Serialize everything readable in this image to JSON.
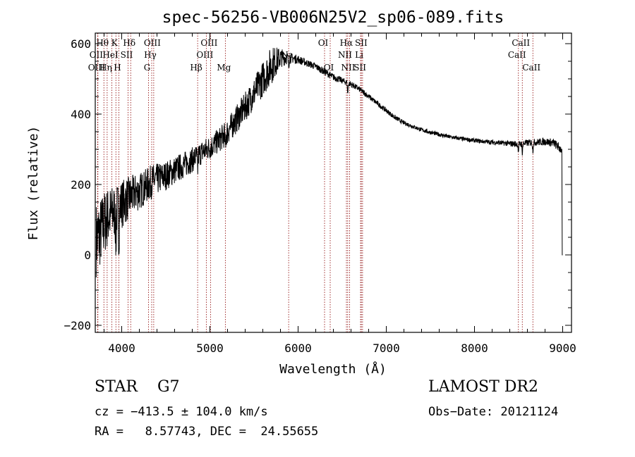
{
  "chart_data": {
    "type": "line",
    "title": "spec-56256-VB006N25V2_sp06-089.fits",
    "xlabel": "Wavelength (Å)",
    "ylabel": "Flux (relative)",
    "xlim": [
      3700,
      9100
    ],
    "ylim": [
      -220,
      630
    ],
    "xticks": [
      4000,
      5000,
      6000,
      7000,
      8000,
      9000
    ],
    "yticks": [
      -200,
      0,
      200,
      400,
      600
    ],
    "xtick_labels": [
      "4000",
      "5000",
      "6000",
      "7000",
      "8000",
      "9000"
    ],
    "ytick_labels": [
      "−200",
      "0",
      "200",
      "400",
      "600"
    ],
    "grid": false,
    "line_color": "#000000",
    "marker_color": "#8b0000",
    "series": [
      {
        "x": [
          3700,
          3750,
          3800,
          3850,
          3900,
          3950,
          4000,
          4050,
          4100,
          4150,
          4200,
          4250,
          4300,
          4350,
          4400,
          4450,
          4500,
          4600,
          4700,
          4800,
          4900,
          5000,
          5100,
          5200,
          5300,
          5400,
          5500,
          5600,
          5700,
          5800,
          5900,
          6000,
          6100,
          6200,
          6300,
          6400,
          6500,
          6600,
          6700,
          6800,
          6900,
          7000,
          7100,
          7200,
          7300,
          7400,
          7500,
          7600,
          7700,
          7800,
          7900,
          8000,
          8100,
          8200,
          8300,
          8400,
          8500,
          8600,
          8700,
          8800,
          8900,
          8980
        ],
        "y": [
          40,
          60,
          90,
          110,
          120,
          130,
          145,
          155,
          165,
          175,
          180,
          190,
          200,
          210,
          215,
          220,
          225,
          240,
          255,
          270,
          290,
          305,
          325,
          350,
          385,
          420,
          460,
          500,
          540,
          560,
          560,
          555,
          545,
          535,
          520,
          505,
          495,
          485,
          470,
          450,
          430,
          410,
          390,
          375,
          365,
          355,
          348,
          342,
          336,
          332,
          328,
          325,
          322,
          320,
          318,
          316,
          315,
          318,
          320,
          322,
          318,
          300
        ],
        "noise": [
          110,
          100,
          95,
          85,
          80,
          75,
          70,
          65,
          60,
          55,
          55,
          50,
          50,
          48,
          45,
          44,
          42,
          40,
          38,
          36,
          35,
          35,
          35,
          38,
          40,
          42,
          45,
          50,
          55,
          28,
          15,
          12,
          10,
          10,
          10,
          10,
          9,
          9,
          8,
          8,
          7,
          7,
          7,
          6,
          6,
          6,
          6,
          6,
          6,
          6,
          6,
          6,
          6,
          7,
          7,
          8,
          10,
          10,
          10,
          11,
          12,
          14
        ]
      }
    ],
    "line_markers": [
      {
        "label": "Hθ",
        "x": 3798,
        "row": 0
      },
      {
        "label": "OII",
        "x": 3727,
        "row": 1
      },
      {
        "label": "OIII",
        "x": 3730,
        "row": 2
      },
      {
        "label": "Hη",
        "x": 3835,
        "row": 2
      },
      {
        "label": "HeI",
        "x": 3889,
        "row": 1
      },
      {
        "label": "K",
        "x": 3934,
        "row": 0
      },
      {
        "label": "H",
        "x": 3968,
        "row": 2
      },
      {
        "label": "SII",
        "x": 4072,
        "row": 1
      },
      {
        "label": "Hδ",
        "x": 4102,
        "row": 0
      },
      {
        "label": "OIII",
        "x": 4363,
        "row": 0
      },
      {
        "label": "Hγ",
        "x": 4340,
        "row": 1
      },
      {
        "label": "G",
        "x": 4304,
        "row": 2
      },
      {
        "label": "Hβ",
        "x": 4861,
        "row": 2
      },
      {
        "label": "OIII",
        "x": 5007,
        "row": 0
      },
      {
        "label": "OIII",
        "x": 4959,
        "row": 1
      },
      {
        "label": "Mg",
        "x": 5175,
        "row": 2
      },
      {
        "label": "Na",
        "x": 5893,
        "row": 1
      },
      {
        "label": "OI",
        "x": 6300,
        "row": 0
      },
      {
        "label": "OI",
        "x": 6364,
        "row": 2
      },
      {
        "label": "Hα",
        "x": 6563,
        "row": 0
      },
      {
        "label": "SII",
        "x": 6731,
        "row": 0
      },
      {
        "label": "NII",
        "x": 6548,
        "row": 1
      },
      {
        "label": "Li",
        "x": 6708,
        "row": 1
      },
      {
        "label": "NII",
        "x": 6584,
        "row": 2
      },
      {
        "label": "SII",
        "x": 6717,
        "row": 2
      },
      {
        "label": "CaII",
        "x": 8542,
        "row": 0
      },
      {
        "label": "CaII",
        "x": 8498,
        "row": 1
      },
      {
        "label": "CaII",
        "x": 8662,
        "row": 2
      }
    ]
  },
  "info": {
    "object_class": "STAR    G7",
    "cz": "cz = −413.5 ± 104.0 km/s",
    "radec": "RA =   8.57743, DEC =  24.55655",
    "survey": "LAMOST DR2",
    "obs_date": "Obs−Date: 20121124"
  }
}
